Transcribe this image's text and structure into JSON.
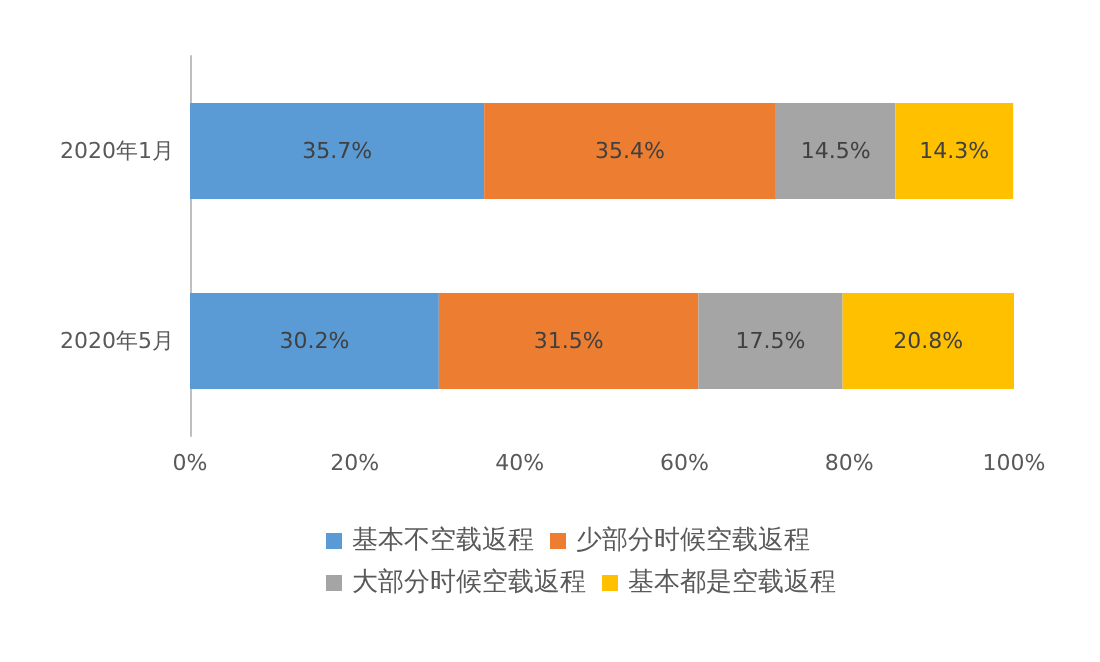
{
  "chart_data": {
    "type": "bar",
    "orientation": "horizontal",
    "stacked": true,
    "categories": [
      "2020年1月",
      "2020年5月"
    ],
    "series": [
      {
        "name": "基本不空载返程",
        "color": "#5b9bd5",
        "values": [
          35.7,
          30.2
        ],
        "value_labels": [
          "35.7%",
          "30.2%"
        ]
      },
      {
        "name": "少部分时候空载返程",
        "color": "#ed7d31",
        "values": [
          35.4,
          31.5
        ],
        "value_labels": [
          "35.4%",
          "31.5%"
        ]
      },
      {
        "name": "大部分时候空载返程",
        "color": "#a5a5a5",
        "values": [
          14.5,
          17.5
        ],
        "value_labels": [
          "14.5%",
          "17.5%"
        ]
      },
      {
        "name": "基本都是空载返程",
        "color": "#ffc000",
        "values": [
          14.3,
          20.8
        ],
        "value_labels": [
          "14.3%",
          "20.8%"
        ]
      }
    ],
    "xlim": [
      0,
      100
    ],
    "xticks": [
      {
        "value": 0,
        "label": "0%"
      },
      {
        "value": 20,
        "label": "20%"
      },
      {
        "value": 40,
        "label": "40%"
      },
      {
        "value": 60,
        "label": "60%"
      },
      {
        "value": 80,
        "label": "80%"
      },
      {
        "value": 100,
        "label": "100%"
      }
    ],
    "grid": false,
    "legend": "bottom"
  }
}
